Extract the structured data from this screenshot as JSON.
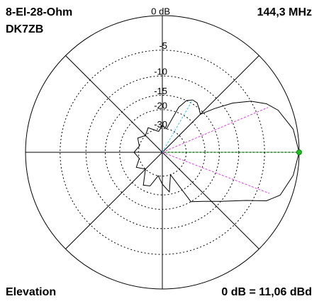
{
  "chart_data": {
    "type": "polar",
    "scale": "arrl",
    "title": "8-El-28-Ohm",
    "subtitle": "DK7ZB",
    "frequency": "144,3 MHz",
    "plane": "Elevation",
    "reference": "0 dB = 11,06 dBd",
    "rlim": [
      -40,
      0
    ],
    "rticks": [
      {
        "value": 0,
        "label": "0 dB"
      },
      -5,
      -10,
      -15,
      -20,
      -30
    ],
    "angles": [
      0,
      10,
      20,
      25,
      30,
      35,
      40,
      45,
      50,
      55,
      60,
      65,
      70,
      75,
      80,
      90,
      100,
      110,
      120,
      135,
      150,
      165,
      180,
      195,
      210,
      225,
      240,
      250,
      260,
      270,
      280,
      290,
      300,
      310,
      320,
      330,
      335,
      340,
      350
    ],
    "values": [
      0,
      -0.5,
      -1.8,
      -3,
      -5,
      -8,
      -12,
      -16,
      -15,
      -14,
      -14,
      -15,
      -18,
      -25,
      -30,
      -28,
      -32,
      -30,
      -27,
      -30,
      -27,
      -30,
      -27,
      -30,
      -26,
      -30,
      -22,
      -23,
      -30,
      -25,
      -21,
      -30,
      -15,
      -13,
      -10,
      -6,
      -3,
      -1.5,
      -0.5
    ],
    "color": "#000000",
    "reference_lines": [
      {
        "angle": 0,
        "value": 0,
        "color": "#22bb22"
      },
      {
        "angle": 23,
        "value": -3,
        "color": "#e040e0"
      },
      {
        "angle": 339,
        "value": -3,
        "color": "#e040e0"
      },
      {
        "angle": 60,
        "value": -14,
        "color": "#40c8f0"
      }
    ]
  }
}
